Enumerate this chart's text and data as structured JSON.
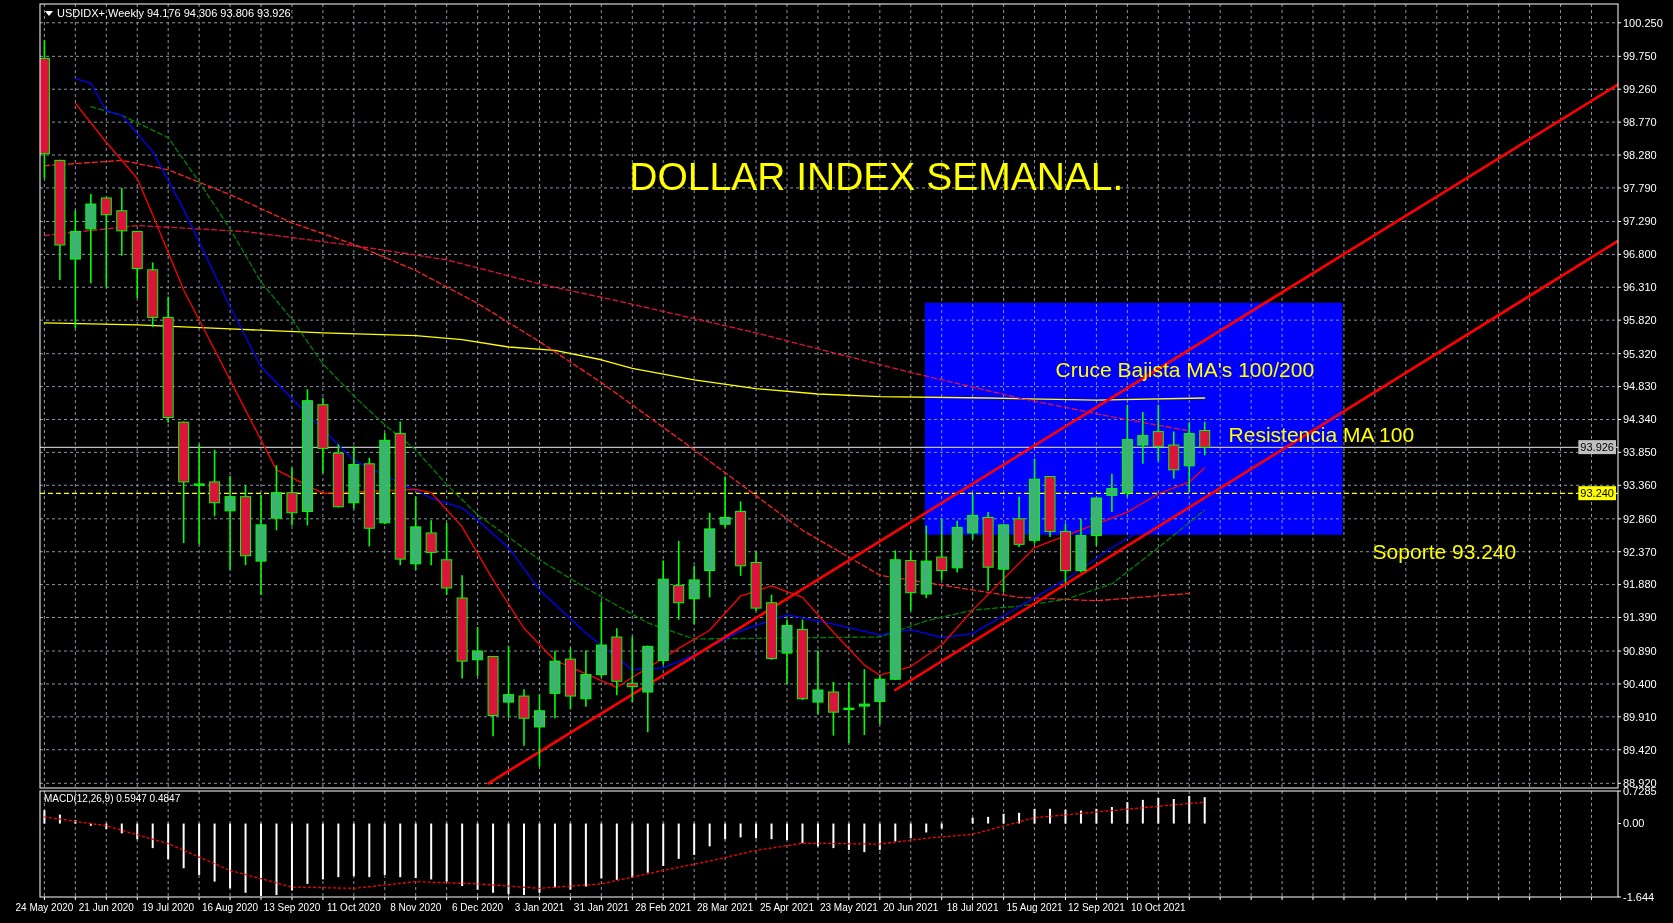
{
  "chart_data": [
    {
      "type": "candlestick",
      "title": "DOLLAR INDEX SEMANAL.",
      "subtitle": "USDIDX+,Weekly  94.176 94.306 93.806 93.926",
      "x": [
        "2020-05-24",
        "2020-05-31",
        "2020-06-07",
        "2020-06-14",
        "2020-06-21",
        "2020-06-28",
        "2020-07-05",
        "2020-07-12",
        "2020-07-19",
        "2020-07-26",
        "2020-08-02",
        "2020-08-09",
        "2020-08-16",
        "2020-08-23",
        "2020-08-30",
        "2020-09-06",
        "2020-09-13",
        "2020-09-20",
        "2020-09-27",
        "2020-10-04",
        "2020-10-11",
        "2020-10-18",
        "2020-10-25",
        "2020-11-01",
        "2020-11-08",
        "2020-11-15",
        "2020-11-22",
        "2020-11-29",
        "2020-12-06",
        "2020-12-13",
        "2020-12-20",
        "2020-12-27",
        "2021-01-03",
        "2021-01-10",
        "2021-01-17",
        "2021-01-24",
        "2021-01-31",
        "2021-02-07",
        "2021-02-14",
        "2021-02-21",
        "2021-02-28",
        "2021-03-07",
        "2021-03-14",
        "2021-03-21",
        "2021-03-28",
        "2021-04-04",
        "2021-04-11",
        "2021-04-18",
        "2021-04-25",
        "2021-05-02",
        "2021-05-09",
        "2021-05-16",
        "2021-05-23",
        "2021-05-30",
        "2021-06-06",
        "2021-06-13",
        "2021-06-20",
        "2021-06-27",
        "2021-07-04",
        "2021-07-11",
        "2021-07-18",
        "2021-07-25",
        "2021-08-01",
        "2021-08-08",
        "2021-08-15",
        "2021-08-22",
        "2021-08-29",
        "2021-09-05",
        "2021-09-12",
        "2021-09-19",
        "2021-09-26",
        "2021-10-03",
        "2021-10-10",
        "2021-10-17",
        "2021-10-24",
        "2021-10-31"
      ],
      "ohlc": [
        [
          99.72,
          99.99,
          97.93,
          98.3
        ],
        [
          98.2,
          98.21,
          96.42,
          96.94
        ],
        [
          96.73,
          97.46,
          95.7,
          97.14
        ],
        [
          97.18,
          97.7,
          96.37,
          97.55
        ],
        [
          97.64,
          97.66,
          96.31,
          97.39
        ],
        [
          97.45,
          97.79,
          96.78,
          97.15
        ],
        [
          97.14,
          97.15,
          96.15,
          96.59
        ],
        [
          96.57,
          96.68,
          95.72,
          95.86
        ],
        [
          95.86,
          96.17,
          94.29,
          94.37
        ],
        [
          94.3,
          94.31,
          92.5,
          93.41
        ],
        [
          93.36,
          93.97,
          92.48,
          93.38
        ],
        [
          93.41,
          93.89,
          92.9,
          93.1
        ],
        [
          92.98,
          93.5,
          92.1,
          93.19
        ],
        [
          93.19,
          93.36,
          92.17,
          92.31
        ],
        [
          92.23,
          93.22,
          91.73,
          92.77
        ],
        [
          92.87,
          93.66,
          92.69,
          93.25
        ],
        [
          93.25,
          93.62,
          92.76,
          92.95
        ],
        [
          92.97,
          94.79,
          92.76,
          94.62
        ],
        [
          94.56,
          94.66,
          93.54,
          93.91
        ],
        [
          93.84,
          93.97,
          93.03,
          93.04
        ],
        [
          93.1,
          93.94,
          93.01,
          93.67
        ],
        [
          93.68,
          93.77,
          92.45,
          92.72
        ],
        [
          92.8,
          94.14,
          92.78,
          94.03
        ],
        [
          94.13,
          94.31,
          92.17,
          92.26
        ],
        [
          92.19,
          93.19,
          92.1,
          92.74
        ],
        [
          92.65,
          92.84,
          92.17,
          92.36
        ],
        [
          92.25,
          92.8,
          91.73,
          91.83
        ],
        [
          91.68,
          92.02,
          90.48,
          90.74
        ],
        [
          90.76,
          91.25,
          90.52,
          90.89
        ],
        [
          90.81,
          90.81,
          89.62,
          89.93
        ],
        [
          90.13,
          90.97,
          89.9,
          90.24
        ],
        [
          90.22,
          90.32,
          89.48,
          89.89
        ],
        [
          89.76,
          90.25,
          89.17,
          90.0
        ],
        [
          90.26,
          90.9,
          89.89,
          90.74
        ],
        [
          90.77,
          90.93,
          90.02,
          90.22
        ],
        [
          90.18,
          90.9,
          90.06,
          90.54
        ],
        [
          90.54,
          91.63,
          90.5,
          90.98
        ],
        [
          91.1,
          91.23,
          90.23,
          90.44
        ],
        [
          90.41,
          91.1,
          90.13,
          90.36
        ],
        [
          90.28,
          90.97,
          89.68,
          90.96
        ],
        [
          90.75,
          92.24,
          90.69,
          91.96
        ],
        [
          91.87,
          92.53,
          91.36,
          91.61
        ],
        [
          91.67,
          92.16,
          91.29,
          91.95
        ],
        [
          92.09,
          92.95,
          91.69,
          92.71
        ],
        [
          92.78,
          93.49,
          92.73,
          92.88
        ],
        [
          92.97,
          93.12,
          92.01,
          92.16
        ],
        [
          92.21,
          92.37,
          91.49,
          91.53
        ],
        [
          91.61,
          91.73,
          90.76,
          90.78
        ],
        [
          90.86,
          91.36,
          90.4,
          91.27
        ],
        [
          91.21,
          91.36,
          90.16,
          90.18
        ],
        [
          90.13,
          90.9,
          89.95,
          90.31
        ],
        [
          90.28,
          90.43,
          89.63,
          89.98
        ],
        [
          90.02,
          90.43,
          89.52,
          90.04
        ],
        [
          90.07,
          90.62,
          89.64,
          90.1
        ],
        [
          90.14,
          90.53,
          89.8,
          90.47
        ],
        [
          90.47,
          92.39,
          90.46,
          92.25
        ],
        [
          92.24,
          92.39,
          91.49,
          91.76
        ],
        [
          91.74,
          92.76,
          91.68,
          92.23
        ],
        [
          92.29,
          92.86,
          91.95,
          92.09
        ],
        [
          92.13,
          92.83,
          92.06,
          92.73
        ],
        [
          92.65,
          93.23,
          92.56,
          92.91
        ],
        [
          92.88,
          92.96,
          91.79,
          92.14
        ],
        [
          92.11,
          92.78,
          91.77,
          92.77
        ],
        [
          92.86,
          93.19,
          92.44,
          92.48
        ],
        [
          92.54,
          93.76,
          92.49,
          93.45
        ],
        [
          93.49,
          93.5,
          92.59,
          92.67
        ],
        [
          92.67,
          92.79,
          91.91,
          92.09
        ],
        [
          92.09,
          92.86,
          92.06,
          92.61
        ],
        [
          92.61,
          93.18,
          92.46,
          93.17
        ],
        [
          93.21,
          93.53,
          92.96,
          93.31
        ],
        [
          93.25,
          94.56,
          93.19,
          94.04
        ],
        [
          93.96,
          94.45,
          93.68,
          94.1
        ],
        [
          94.16,
          94.56,
          93.72,
          93.94
        ],
        [
          93.96,
          94.16,
          93.46,
          93.59
        ],
        [
          93.65,
          94.3,
          93.26,
          94.13
        ],
        [
          94.176,
          94.306,
          93.806,
          93.926
        ]
      ],
      "color": "#00ff00",
      "colors": [
        "#dc143c",
        "#dc143c",
        "#3cb371",
        "#3cb371",
        "#dc143c",
        "#dc143c",
        "#dc143c",
        "#dc143c",
        "#dc143c",
        "#dc143c",
        "#3cb371",
        "#dc143c",
        "#3cb371",
        "#dc143c",
        "#3cb371",
        "#3cb371",
        "#dc143c",
        "#3cb371",
        "#dc143c",
        "#dc143c",
        "#3cb371",
        "#dc143c",
        "#3cb371",
        "#dc143c",
        "#3cb371",
        "#dc143c",
        "#dc143c",
        "#dc143c",
        "#3cb371",
        "#dc143c",
        "#3cb371",
        "#dc143c",
        "#3cb371",
        "#3cb371",
        "#dc143c",
        "#3cb371",
        "#3cb371",
        "#dc143c",
        "#dc143c",
        "#3cb371",
        "#3cb371",
        "#dc143c",
        "#3cb371",
        "#3cb371",
        "#3cb371",
        "#dc143c",
        "#dc143c",
        "#dc143c",
        "#3cb371",
        "#dc143c",
        "#3cb371",
        "#dc143c",
        "#3cb371",
        "#3cb371",
        "#3cb371",
        "#3cb371",
        "#dc143c",
        "#3cb371",
        "#dc143c",
        "#3cb371",
        "#3cb371",
        "#dc143c",
        "#3cb371",
        "#dc143c",
        "#3cb371",
        "#dc143c",
        "#dc143c",
        "#3cb371",
        "#3cb371",
        "#3cb371",
        "#3cb371",
        "#3cb371",
        "#dc143c",
        "#dc143c",
        "#3cb371",
        "#dc143c"
      ],
      "series": [
        {
          "type": "line",
          "color": "#ffff00",
          "x": [
            "2020-05-24",
            "2020-07-05",
            "2020-08-16",
            "2020-09-27",
            "2020-11-08",
            "2020-11-29",
            "2020-12-20",
            "2021-01-10",
            "2021-01-31",
            "2021-02-14",
            "2021-03-14",
            "2021-04-11",
            "2021-05-09",
            "2021-06-06",
            "2021-07-25",
            "2021-09-12",
            "2021-10-31"
          ],
          "values": [
            95.78,
            95.75,
            95.69,
            95.63,
            95.59,
            95.53,
            95.42,
            95.37,
            95.23,
            95.1,
            94.93,
            94.8,
            94.72,
            94.68,
            94.66,
            94.63,
            94.66
          ]
        },
        {
          "type": "line",
          "color": "#dc143c",
          "line_style": "dashed",
          "x": [
            "2020-05-24",
            "2020-07-05",
            "2020-08-23",
            "2020-10-11",
            "2020-11-22",
            "2021-01-03",
            "2021-02-07",
            "2021-04-11",
            "2021-06-20",
            "2021-08-08",
            "2021-09-19",
            "2021-10-24"
          ],
          "values": [
            97.08,
            97.23,
            97.14,
            96.93,
            96.72,
            96.36,
            96.11,
            95.63,
            95.04,
            94.66,
            94.38,
            94.17
          ]
        },
        {
          "type": "line",
          "color": "#ff2020",
          "line_style": "dashed",
          "x": [
            "2020-05-24",
            "2020-06-28",
            "2020-07-19",
            "2020-08-16",
            "2020-09-13",
            "2020-10-11",
            "2020-11-08",
            "2020-12-06",
            "2021-01-03",
            "2021-01-31",
            "2021-03-14",
            "2021-05-02",
            "2021-06-06",
            "2021-08-08",
            "2021-09-12",
            "2021-10-24"
          ],
          "values": [
            98.12,
            98.2,
            98.06,
            97.69,
            97.27,
            96.95,
            96.56,
            96.07,
            95.5,
            94.89,
            93.89,
            92.69,
            92.02,
            91.69,
            91.64,
            91.75
          ]
        },
        {
          "type": "line",
          "color": "#008000",
          "line_style": "dashed",
          "x": [
            "2020-06-14",
            "2020-06-28",
            "2020-07-19",
            "2020-08-02",
            "2020-08-16",
            "2020-08-30",
            "2020-09-13",
            "2020-09-27",
            "2020-10-11",
            "2020-10-25",
            "2020-11-08",
            "2020-11-22",
            "2020-12-06",
            "2020-12-20",
            "2021-01-03",
            "2021-01-24",
            "2021-02-21",
            "2021-03-14",
            "2021-06-06",
            "2021-06-27",
            "2021-07-18",
            "2021-08-08",
            "2021-08-29",
            "2021-09-19",
            "2021-10-10",
            "2021-10-31"
          ],
          "values": [
            99.0,
            98.87,
            98.54,
            97.88,
            97.18,
            96.39,
            95.83,
            95.17,
            94.69,
            94.26,
            93.89,
            93.37,
            92.92,
            92.59,
            92.25,
            91.83,
            91.31,
            91.07,
            91.1,
            91.34,
            91.5,
            91.56,
            91.66,
            91.89,
            92.43,
            92.99
          ]
        },
        {
          "type": "line",
          "color": "#0000ff",
          "x": [
            "2020-06-07",
            "2020-06-14",
            "2020-06-21",
            "2020-06-28",
            "2020-07-12",
            "2020-07-26",
            "2020-08-16",
            "2020-08-30",
            "2020-09-13",
            "2020-10-11",
            "2020-11-15",
            "2020-11-29",
            "2020-12-06",
            "2020-12-20",
            "2021-01-03",
            "2021-01-24",
            "2021-02-14",
            "2021-02-28",
            "2021-03-14",
            "2021-04-04",
            "2021-04-25",
            "2021-05-16",
            "2021-06-06",
            "2021-06-20",
            "2021-07-04",
            "2021-07-18",
            "2021-08-29",
            "2021-09-19",
            "2021-10-10",
            "2021-10-31"
          ],
          "values": [
            99.42,
            99.35,
            98.94,
            98.87,
            98.33,
            97.47,
            96.02,
            95.13,
            94.65,
            93.73,
            93.17,
            93.02,
            92.84,
            92.43,
            91.8,
            91.16,
            90.61,
            90.64,
            90.83,
            91.19,
            91.43,
            91.29,
            91.13,
            91.21,
            91.09,
            91.15,
            91.95,
            92.43,
            92.84,
            93.16
          ]
        },
        {
          "type": "line",
          "color": "#ff0000",
          "x": [
            "2020-06-07",
            "2020-06-21",
            "2020-07-05",
            "2020-07-12",
            "2020-07-26",
            "2020-08-09",
            "2020-08-23",
            "2020-09-06",
            "2020-09-27",
            "2020-11-08",
            "2020-11-15",
            "2020-11-29",
            "2020-12-13",
            "2020-12-27",
            "2021-01-10",
            "2021-02-07",
            "2021-03-07",
            "2021-03-21",
            "2021-04-04",
            "2021-04-18",
            "2021-05-02",
            "2021-05-16",
            "2021-05-30",
            "2021-06-06",
            "2021-06-20",
            "2021-07-04",
            "2021-07-18",
            "2021-08-15",
            "2021-09-26",
            "2021-10-10",
            "2021-10-24",
            "2021-10-31"
          ],
          "values": [
            99.05,
            98.47,
            97.93,
            97.39,
            96.27,
            95.38,
            94.48,
            93.59,
            93.24,
            93.3,
            93.25,
            92.74,
            91.95,
            91.23,
            90.75,
            90.35,
            90.93,
            91.2,
            91.71,
            91.86,
            91.69,
            91.17,
            90.68,
            90.53,
            90.66,
            90.98,
            91.5,
            92.43,
            92.96,
            93.23,
            93.41,
            93.62
          ]
        },
        {
          "type": "line",
          "color": "#ff0000",
          "x": [
            "2020-12-11",
            "2022-05-06"
          ],
          "values": [
            88.92,
            99.33
          ]
        },
        {
          "type": "line",
          "color": "#ff0000",
          "x": [
            "2021-06-13",
            "2022-05-06"
          ],
          "values": [
            90.31,
            97.0
          ]
        }
      ],
      "xlim": [
        "2020-05-22",
        "2022-05-06"
      ],
      "xticks": [
        "2020-05-24",
        "2020-06-07",
        "2020-06-21",
        "2020-07-05",
        "2020-07-19",
        "2020-08-02",
        "2020-08-16",
        "2020-08-30",
        "2020-09-13",
        "2020-09-27",
        "2020-10-11",
        "2020-10-25",
        "2020-11-08",
        "2020-11-22",
        "2020-12-06",
        "2020-12-20",
        "2021-01-03",
        "2021-01-17",
        "2021-01-31",
        "2021-02-14",
        "2021-02-28",
        "2021-03-14",
        "2021-03-28",
        "2021-04-11",
        "2021-04-25",
        "2021-05-09",
        "2021-05-23",
        "2021-06-06",
        "2021-06-20",
        "2021-07-04",
        "2021-07-18",
        "2021-08-01",
        "2021-08-15",
        "2021-08-29",
        "2021-09-12",
        "2021-09-26",
        "2021-10-10",
        "2021-10-24",
        "2021-11-07",
        "2021-11-21",
        "2021-12-05",
        "2021-12-19",
        "2022-01-02",
        "2022-01-16",
        "2022-01-30",
        "2022-02-13",
        "2022-02-27",
        "2022-03-13",
        "2022-03-27",
        "2022-04-10",
        "2022-04-24"
      ],
      "ylim": [
        88.85,
        100.53
      ],
      "yticks": [
        {
          "value": 100.25,
          "label": "100.250"
        },
        {
          "value": 99.75,
          "label": "99.750"
        },
        {
          "value": 99.26,
          "label": "99.260"
        },
        {
          "value": 98.77,
          "label": "98.770"
        },
        {
          "value": 98.28,
          "label": "98.280"
        },
        {
          "value": 97.79,
          "label": "97.790"
        },
        {
          "value": 97.29,
          "label": "97.290"
        },
        {
          "value": 96.8,
          "label": "96.800"
        },
        {
          "value": 96.31,
          "label": "96.310"
        },
        {
          "value": 95.82,
          "label": "95.820"
        },
        {
          "value": 95.32,
          "label": "95.320"
        },
        {
          "value": 94.83,
          "label": "94.830"
        },
        {
          "value": 94.34,
          "label": "94.340"
        },
        {
          "value": 93.85,
          "label": "93.850"
        },
        {
          "value": 93.36,
          "label": "93.360"
        },
        {
          "value": 92.86,
          "label": "92.860"
        },
        {
          "value": 92.37,
          "label": "92.370"
        },
        {
          "value": 91.88,
          "label": "91.880"
        },
        {
          "value": 91.39,
          "label": "91.390"
        },
        {
          "value": 90.89,
          "label": "90.890"
        },
        {
          "value": 90.4,
          "label": "90.400"
        },
        {
          "value": 89.91,
          "label": "89.910"
        },
        {
          "value": 89.42,
          "label": "89.420"
        },
        {
          "value": 88.92,
          "label": "88.920"
        }
      ],
      "grid": true,
      "tick_labels": "y",
      "ref_lines": [
        {
          "axis": "y",
          "value": 93.926,
          "label": "93.926",
          "color": "#c0c0c0",
          "line_style": "solid"
        },
        {
          "axis": "y",
          "value": 93.24,
          "label": "93.240",
          "color": "#ffff00",
          "line_style": "dashed"
        }
      ],
      "annotations": [
        "Cruce Bajista MA's 100/200",
        "Resistencia MA 100",
        "Soporte 93.240"
      ]
    },
    {
      "type": "bar",
      "title": "MACD(12,26,9) 0.5947 0.4847",
      "x": [
        "2020-05-24",
        "2020-05-31",
        "2020-06-07",
        "2020-06-14",
        "2020-06-21",
        "2020-06-28",
        "2020-07-05",
        "2020-07-12",
        "2020-07-19",
        "2020-07-26",
        "2020-08-02",
        "2020-08-09",
        "2020-08-16",
        "2020-08-23",
        "2020-08-30",
        "2020-09-06",
        "2020-09-13",
        "2020-09-20",
        "2020-09-27",
        "2020-10-04",
        "2020-10-11",
        "2020-10-18",
        "2020-10-25",
        "2020-11-01",
        "2020-11-08",
        "2020-11-15",
        "2020-11-22",
        "2020-11-29",
        "2020-12-06",
        "2020-12-13",
        "2020-12-20",
        "2020-12-27",
        "2021-01-03",
        "2021-01-10",
        "2021-01-17",
        "2021-01-24",
        "2021-01-31",
        "2021-02-07",
        "2021-02-14",
        "2021-02-21",
        "2021-02-28",
        "2021-03-07",
        "2021-03-14",
        "2021-03-21",
        "2021-03-28",
        "2021-04-04",
        "2021-04-11",
        "2021-04-18",
        "2021-04-25",
        "2021-05-02",
        "2021-05-09",
        "2021-05-16",
        "2021-05-23",
        "2021-05-30",
        "2021-06-06",
        "2021-06-13",
        "2021-06-20",
        "2021-06-27",
        "2021-07-04",
        "2021-07-11",
        "2021-07-18",
        "2021-07-25",
        "2021-08-01",
        "2021-08-08",
        "2021-08-15",
        "2021-08-22",
        "2021-08-29",
        "2021-09-05",
        "2021-09-12",
        "2021-09-19",
        "2021-09-26",
        "2021-10-03",
        "2021-10-10",
        "2021-10-17",
        "2021-10-24",
        "2021-10-31"
      ],
      "series": [
        {
          "type": "bar",
          "color": "#ffffff",
          "values": [
            0.3,
            0.2,
            0.08,
            -0.05,
            -0.12,
            -0.22,
            -0.35,
            -0.55,
            -0.8,
            -1.0,
            -1.15,
            -1.3,
            -1.45,
            -1.55,
            -1.62,
            -1.6,
            -1.5,
            -1.35,
            -1.25,
            -1.2,
            -1.18,
            -1.2,
            -1.15,
            -1.2,
            -1.22,
            -1.25,
            -1.3,
            -1.4,
            -1.48,
            -1.55,
            -1.58,
            -1.6,
            -1.55,
            -1.43,
            -1.48,
            -1.41,
            -1.23,
            -1.26,
            -1.21,
            -1.1,
            -0.95,
            -0.79,
            -0.7,
            -0.51,
            -0.35,
            -0.31,
            -0.33,
            -0.35,
            -0.37,
            -0.44,
            -0.51,
            -0.55,
            -0.59,
            -0.64,
            -0.59,
            -0.4,
            -0.33,
            -0.2,
            -0.11,
            null,
            0.13,
            0.15,
            0.22,
            0.24,
            0.33,
            0.33,
            0.31,
            0.29,
            0.33,
            0.37,
            0.48,
            0.53,
            0.57,
            0.55,
            0.62,
            0.59
          ]
        },
        {
          "type": "line",
          "color": "#ff0000",
          "line_style": "dotted",
          "x": [
            "2020-05-24",
            "2020-06-21",
            "2020-07-19",
            "2020-08-16",
            "2020-09-13",
            "2020-10-11",
            "2020-11-08",
            "2020-12-06",
            "2021-01-03",
            "2021-01-31",
            "2021-02-28",
            "2021-03-21",
            "2021-04-11",
            "2021-05-02",
            "2021-06-06",
            "2021-06-27",
            "2021-07-18",
            "2021-08-15",
            "2021-09-19",
            "2021-10-31"
          ],
          "values": [
            0.15,
            -0.05,
            -0.45,
            -1.05,
            -1.42,
            -1.45,
            -1.3,
            -1.35,
            -1.45,
            -1.35,
            -1.05,
            -0.84,
            -0.6,
            -0.44,
            -0.46,
            -0.33,
            -0.24,
            0.13,
            0.29,
            0.48
          ]
        }
      ],
      "xlim": [
        "2020-05-22",
        "2022-05-06"
      ],
      "xticks": [
        {
          "value": "2020-05-24",
          "label": "24 May 2020"
        },
        {
          "value": "2020-06-07",
          "label": null
        },
        {
          "value": "2020-06-21",
          "label": "21 Jun 2020"
        },
        {
          "value": "2020-07-05",
          "label": null
        },
        {
          "value": "2020-07-19",
          "label": "19 Jul 2020"
        },
        {
          "value": "2020-08-02",
          "label": null
        },
        {
          "value": "2020-08-16",
          "label": "16 Aug 2020"
        },
        {
          "value": "2020-08-30",
          "label": null
        },
        {
          "value": "2020-09-13",
          "label": "13 Sep 2020"
        },
        {
          "value": "2020-09-27",
          "label": null
        },
        {
          "value": "2020-10-11",
          "label": "11 Oct 2020"
        },
        {
          "value": "2020-10-25",
          "label": null
        },
        {
          "value": "2020-11-08",
          "label": "8 Nov 2020"
        },
        {
          "value": "2020-11-22",
          "label": null
        },
        {
          "value": "2020-12-06",
          "label": "6 Dec 2020"
        },
        {
          "value": "2020-12-20",
          "label": null
        },
        {
          "value": "2021-01-03",
          "label": "3 Jan 2021"
        },
        {
          "value": "2021-01-17",
          "label": null
        },
        {
          "value": "2021-01-31",
          "label": "31 Jan 2021"
        },
        {
          "value": "2021-02-14",
          "label": null
        },
        {
          "value": "2021-02-28",
          "label": "28 Feb 2021"
        },
        {
          "value": "2021-03-14",
          "label": null
        },
        {
          "value": "2021-03-28",
          "label": "28 Mar 2021"
        },
        {
          "value": "2021-04-11",
          "label": null
        },
        {
          "value": "2021-04-25",
          "label": "25 Apr 2021"
        },
        {
          "value": "2021-05-09",
          "label": null
        },
        {
          "value": "2021-05-23",
          "label": "23 May 2021"
        },
        {
          "value": "2021-06-06",
          "label": null
        },
        {
          "value": "2021-06-20",
          "label": "20 Jun 2021"
        },
        {
          "value": "2021-07-04",
          "label": null
        },
        {
          "value": "2021-07-18",
          "label": "18 Jul 2021"
        },
        {
          "value": "2021-08-01",
          "label": null
        },
        {
          "value": "2021-08-15",
          "label": "15 Aug 2021"
        },
        {
          "value": "2021-08-29",
          "label": null
        },
        {
          "value": "2021-09-12",
          "label": "12 Sep 2021"
        },
        {
          "value": "2021-09-26",
          "label": null
        },
        {
          "value": "2021-10-10",
          "label": "10 Oct 2021"
        },
        {
          "value": "2021-10-24",
          "label": null
        },
        {
          "value": "2021-11-07",
          "label": null
        },
        {
          "value": "2021-11-21",
          "label": null
        },
        {
          "value": "2021-12-05",
          "label": null
        },
        {
          "value": "2021-12-19",
          "label": null
        },
        {
          "value": "2022-01-02",
          "label": null
        },
        {
          "value": "2022-01-16",
          "label": null
        },
        {
          "value": "2022-01-30",
          "label": null
        },
        {
          "value": "2022-02-13",
          "label": null
        },
        {
          "value": "2022-02-27",
          "label": null
        },
        {
          "value": "2022-03-13",
          "label": null
        },
        {
          "value": "2022-03-27",
          "label": null
        },
        {
          "value": "2022-04-10",
          "label": null
        },
        {
          "value": "2022-04-24",
          "label": null
        }
      ],
      "ylim": [
        -1.644,
        0.7285
      ],
      "yticks": [
        0.7285,
        {
          "value": 0,
          "label": "0.00"
        },
        -1.644
      ],
      "grid": "x"
    }
  ]
}
